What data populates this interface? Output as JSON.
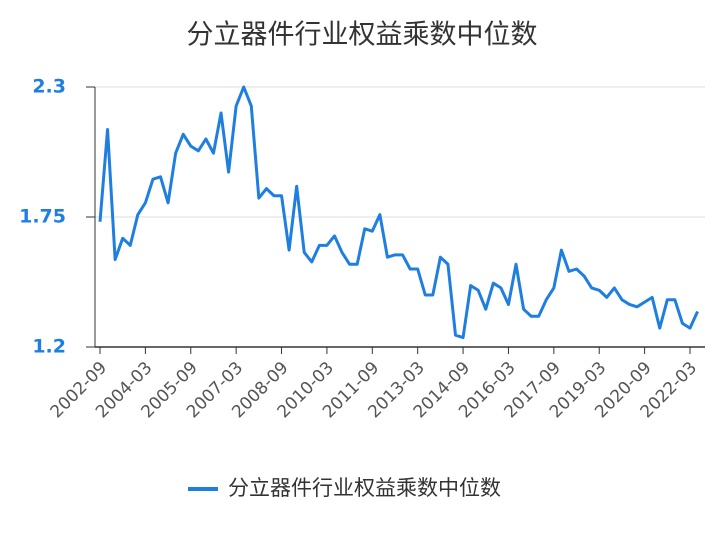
{
  "chart_data": {
    "type": "line",
    "title": "分立器件行业权益乘数中位数",
    "categories": [
      "2002-09",
      null,
      null,
      null,
      null,
      null,
      "2004-03",
      null,
      null,
      null,
      null,
      null,
      "2005-09",
      null,
      null,
      null,
      null,
      null,
      "2007-03",
      null,
      null,
      null,
      null,
      null,
      "2008-09",
      null,
      null,
      null,
      null,
      null,
      "2010-03",
      null,
      null,
      null,
      null,
      null,
      "2011-09",
      null,
      null,
      null,
      null,
      null,
      "2013-03",
      null,
      null,
      null,
      null,
      null,
      "2014-09",
      null,
      null,
      null,
      null,
      null,
      "2016-03",
      null,
      null,
      null,
      null,
      null,
      "2017-09",
      null,
      null,
      null,
      null,
      null,
      "2019-03",
      null,
      null,
      null,
      null,
      null,
      "2020-09",
      null,
      null,
      null,
      null,
      null,
      "2022-03",
      null
    ],
    "series": [
      {
        "name": "分立器件行业权益乘数中位数",
        "color": "#1f7fe0",
        "values": [
          1.73,
          2.12,
          1.57,
          1.66,
          1.63,
          1.76,
          1.81,
          1.91,
          1.92,
          1.81,
          2.02,
          2.1,
          2.05,
          2.03,
          2.08,
          2.02,
          2.19,
          1.94,
          2.22,
          2.3,
          2.22,
          1.83,
          1.87,
          1.84,
          1.84,
          1.61,
          1.88,
          1.6,
          1.56,
          1.63,
          1.63,
          1.67,
          1.6,
          1.55,
          1.55,
          1.7,
          1.69,
          1.76,
          1.58,
          1.59,
          1.59,
          1.53,
          1.53,
          1.42,
          1.42,
          1.58,
          1.55,
          1.25,
          1.24,
          1.46,
          1.44,
          1.36,
          1.47,
          1.45,
          1.38,
          1.55,
          1.36,
          1.33,
          1.33,
          1.4,
          1.45,
          1.61,
          1.52,
          1.53,
          1.5,
          1.45,
          1.44,
          1.41,
          1.45,
          1.4,
          1.38,
          1.37,
          1.39,
          1.41,
          1.28,
          1.4,
          1.4,
          1.3,
          1.28,
          1.35
        ]
      }
    ],
    "ylim": [
      1.2,
      2.3
    ],
    "yticks": [
      1.2,
      1.75,
      2.3
    ],
    "grid": true
  }
}
